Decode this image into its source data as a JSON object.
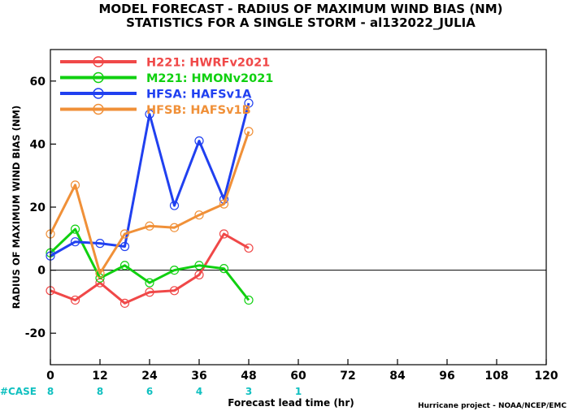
{
  "chart_data": {
    "type": "line",
    "title_line1": "MODEL FORECAST - RADIUS OF MAXIMUM WIND BIAS (NM)",
    "title_line2": "STATISTICS FOR A SINGLE STORM - al132022_JULIA",
    "xlabel": "Forecast lead time (hr)",
    "ylabel": "RADIUS OF MAXIMUM WIND BIAS (NM)",
    "credit": "Hurricane project - NOAA/NCEP/EMC",
    "xlim": [
      0,
      120
    ],
    "ylim": [
      -30,
      70
    ],
    "x_ticks": [
      0,
      12,
      24,
      36,
      48,
      60,
      72,
      84,
      96,
      108,
      120
    ],
    "y_ticks": [
      -20,
      0,
      20,
      40,
      60
    ],
    "zero_line": true,
    "legend_position": "top-left",
    "case_label": "#CASE",
    "case_color": "#10c0c0",
    "cases": [
      {
        "x": 0,
        "n": "8"
      },
      {
        "x": 12,
        "n": "8"
      },
      {
        "x": 24,
        "n": "6"
      },
      {
        "x": 36,
        "n": "4"
      },
      {
        "x": 48,
        "n": "3"
      },
      {
        "x": 60,
        "n": "1"
      }
    ],
    "series": [
      {
        "name": "H221: HWRFv2021",
        "color": "#f04848",
        "x": [
          0,
          6,
          12,
          18,
          24,
          30,
          36,
          42,
          48
        ],
        "y": [
          -6.5,
          -9.5,
          -4,
          -10.5,
          -7,
          -6.5,
          -1.5,
          11.5,
          7
        ]
      },
      {
        "name": "M221: HMONv2021",
        "color": "#10d010",
        "x": [
          0,
          6,
          12,
          18,
          24,
          30,
          36,
          42,
          48
        ],
        "y": [
          5.5,
          13,
          -2.5,
          1.5,
          -4,
          0,
          1.5,
          0.5,
          -9.5
        ]
      },
      {
        "name": "HFSA: HAFSv1A",
        "color": "#2040f0",
        "x": [
          0,
          6,
          12,
          18,
          24,
          30,
          36,
          42,
          48
        ],
        "y": [
          4.5,
          9,
          8.5,
          7.5,
          49.5,
          20.5,
          41,
          22.5,
          53
        ]
      },
      {
        "name": "HFSB: HAFSv1B",
        "color": "#f09038",
        "x": [
          0,
          6,
          12,
          18,
          24,
          30,
          36,
          42,
          48
        ],
        "y": [
          11.5,
          27,
          -1,
          11.5,
          14,
          13.5,
          17.5,
          21,
          44
        ]
      }
    ]
  }
}
